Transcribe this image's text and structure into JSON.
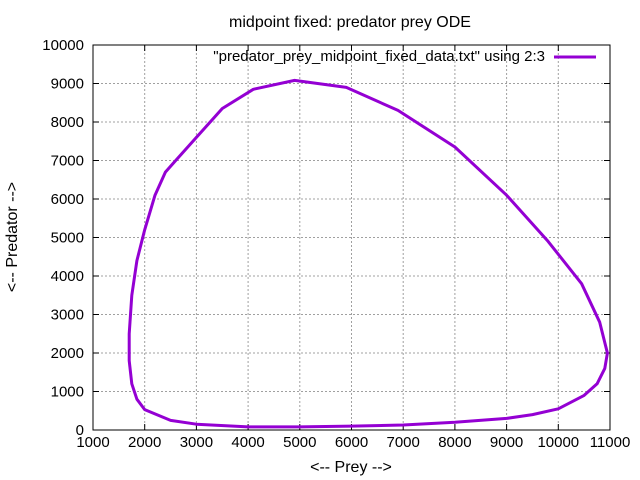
{
  "chart_data": {
    "type": "line",
    "title": "midpoint fixed: predator prey ODE",
    "xlabel": "<-- Prey -->",
    "ylabel": "<-- Predator -->",
    "xlim": [
      1000,
      11000
    ],
    "ylim": [
      0,
      10000
    ],
    "xticks": [
      "1000",
      "2000",
      "3000",
      "4000",
      "5000",
      "6000",
      "7000",
      "8000",
      "9000",
      "10000",
      "11000"
    ],
    "yticks": [
      "0",
      "1000",
      "2000",
      "3000",
      "4000",
      "5000",
      "6000",
      "7000",
      "8000",
      "9000",
      "10000"
    ],
    "grid": true,
    "legend_position": "top-right",
    "series": [
      {
        "name": "\"predator_prey_midpoint_fixed_data.txt\" using 2:3",
        "color": "#9400d3",
        "x": [
          4900,
          5900,
          6900,
          8000,
          9000,
          9800,
          10450,
          10800,
          10950,
          10900,
          10750,
          10500,
          10000,
          9500,
          9000,
          8000,
          7000,
          6000,
          5000,
          4000,
          3000,
          2500,
          2000,
          1850,
          1750,
          1700,
          1700,
          1750,
          1850,
          2000,
          2200,
          2400,
          2600,
          3000,
          3500,
          4100,
          4900
        ],
        "y": [
          9080,
          8900,
          8300,
          7350,
          6100,
          4900,
          3800,
          2800,
          2000,
          1600,
          1200,
          900,
          550,
          400,
          300,
          200,
          130,
          100,
          80,
          80,
          150,
          250,
          530,
          800,
          1200,
          1800,
          2500,
          3500,
          4400,
          5200,
          6100,
          6700,
          7000,
          7600,
          8350,
          8850,
          9080
        ]
      }
    ]
  }
}
